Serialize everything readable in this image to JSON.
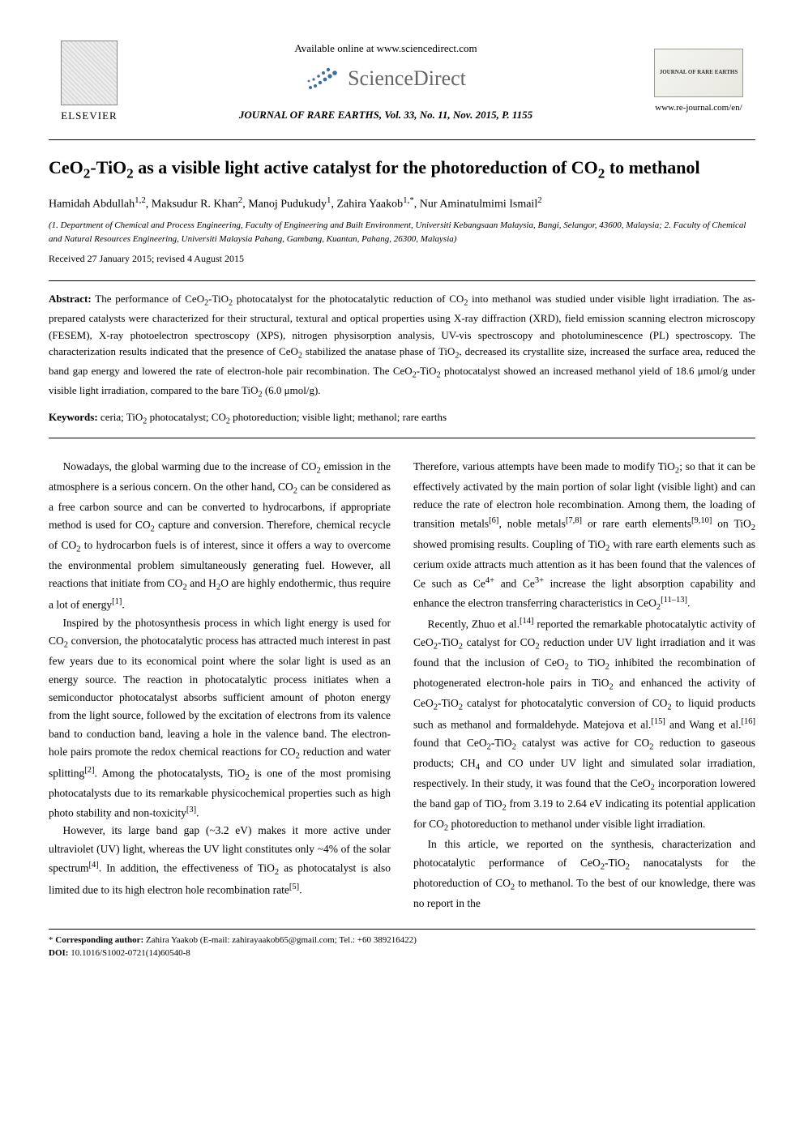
{
  "header": {
    "elsevier_label": "ELSEVIER",
    "available_text": "Available online at www.sciencedirect.com",
    "sciencedirect_label": "ScienceDirect",
    "journal_citation": "JOURNAL OF RARE EARTHS, Vol. 33, No. 11, Nov. 2015, P. 1155",
    "journal_cover_title": "JOURNAL OF RARE EARTHS",
    "journal_url": "www.re-journal.com/en/",
    "sd_dots_color": "#3a6ea5",
    "sd_text_color": "#666666"
  },
  "article": {
    "title_html": "CeO<sub>2</sub>-TiO<sub>2</sub> as a visible light active catalyst for the photoreduction of CO<sub>2</sub> to methanol",
    "authors_html": "Hamidah Abdullah<sup>1,2</sup>, Maksudur R. Khan<sup>2</sup>, Manoj Pudukudy<sup>1</sup>, Zahira Yaakob<sup>1,*</sup>, Nur Aminatulmimi Ismail<sup>2</sup>",
    "affiliations_html": "(1. Department of Chemical and Process Engineering, Faculty of Engineering and Built Environment, Universiti Kebangsaan Malaysia, Bangi, Selangor, 43600, Malaysia; 2. Faculty of Chemical and Natural Resources Engineering, Universiti Malaysia Pahang, Gambang, Kuantan, Pahang, 26300, Malaysia)",
    "received": "Received 27 January 2015; revised 4 August 2015"
  },
  "abstract": {
    "label": "Abstract:",
    "body_html": "The performance of CeO<sub>2</sub>-TiO<sub>2</sub> photocatalyst for the photocatalytic reduction of CO<sub>2</sub> into methanol was studied under visible light irradiation. The as-prepared catalysts were characterized for their structural, textural and optical properties using X-ray diffraction (XRD), field emission scanning electron microscopy (FESEM), X-ray photoelectron spectroscopy (XPS), nitrogen physisorption analysis, UV-vis spectroscopy and photoluminescence (PL) spectroscopy. The characterization results indicated that the presence of CeO<sub>2</sub> stabilized the anatase phase of TiO<sub>2</sub>, decreased its crystallite size, increased the surface area, reduced the band gap energy and lowered the rate of electron-hole pair recombination. The CeO<sub>2</sub>-TiO<sub>2</sub> photocatalyst showed an increased methanol yield of 18.6 μmol/g under visible light irradiation, compared to the bare TiO<sub>2</sub> (6.0 μmol/g).",
    "keywords_label": "Keywords:",
    "keywords_text_html": "ceria; TiO<sub>2</sub> photocatalyst; CO<sub>2</sub> photoreduction; visible light; methanol; rare earths"
  },
  "body": {
    "left_paragraphs_html": [
      "Nowadays, the global warming due to the increase of CO<sub>2</sub> emission in the atmosphere is a serious concern. On the other hand, CO<sub>2</sub> can be considered as a free carbon source and can be converted to hydrocarbons, if appropriate method is used for CO<sub>2</sub> capture and conversion. Therefore, chemical recycle of CO<sub>2</sub> to hydrocarbon fuels is of interest, since it offers a way to overcome the environmental problem simultaneously generating fuel. However, all reactions that initiate from CO<sub>2</sub> and H<sub>2</sub>O are highly endothermic, thus require a lot of energy<sup>[1]</sup>.",
      "Inspired by the photosynthesis process in which light energy is used for CO<sub>2</sub> conversion, the photocatalytic process has attracted much interest in past few years due to its economical point where the solar light is used as an energy source. The reaction in photocatalytic process initiates when a semiconductor photocatalyst absorbs sufficient amount of photon energy from the light source, followed by the excitation of electrons from its valence band to conduction band, leaving a hole in the valence band. The electron-hole pairs promote the redox chemical reactions for CO<sub>2</sub> reduction and water splitting<sup>[2]</sup>. Among the photocatalysts, TiO<sub>2</sub> is one of the most promising photocatalysts due to its remarkable physicochemical properties such as high photo stability and non-toxicity<sup>[3]</sup>.",
      "However, its large band gap (~3.2 eV) makes it more active under ultraviolet (UV) light, whereas the UV light constitutes only ~4% of the solar spectrum<sup>[4]</sup>. In addition, the effectiveness of TiO<sub>2</sub> as photocatalyst is also limited due to its high electron hole recombination rate<sup>[5]</sup>."
    ],
    "right_paragraphs_html": [
      "Therefore, various attempts have been made to modify TiO<sub>2</sub>; so that it can be effectively activated by the main portion of solar light (visible light) and can reduce the rate of electron hole recombination. Among them, the loading of transition metals<sup>[6]</sup>, noble metals<sup>[7,8]</sup> or rare earth elements<sup>[9,10]</sup> on TiO<sub>2</sub> showed promising results. Coupling of TiO<sub>2</sub> with rare earth elements such as cerium oxide attracts much attention as it has been found that the valences of Ce such as Ce<sup>4+</sup> and Ce<sup>3+</sup> increase the light absorption capability and enhance the electron transferring characteristics in CeO<sub>2</sub><sup>[11–13]</sup>.",
      "Recently, Zhuo et al.<sup>[14]</sup> reported the remarkable photocatalytic activity of CeO<sub>2</sub>-TiO<sub>2</sub> catalyst for CO<sub>2</sub> reduction under UV light irradiation and it was found that the inclusion of CeO<sub>2</sub> to TiO<sub>2</sub> inhibited the recombination of photogenerated electron-hole pairs in TiO<sub>2</sub> and enhanced the activity of CeO<sub>2</sub>-TiO<sub>2</sub> catalyst for photocatalytic conversion of CO<sub>2</sub> to liquid products such as methanol and formaldehyde. Matejova et al.<sup>[15]</sup> and Wang et al.<sup>[16]</sup> found that CeO<sub>2</sub>-TiO<sub>2</sub> catalyst was active for CO<sub>2</sub> reduction to gaseous products; CH<sub>4</sub> and CO under UV light and simulated solar irradiation, respectively. In their study, it was found that the CeO<sub>2</sub> incorporation lowered the band gap of TiO<sub>2</sub> from 3.19 to 2.64 eV indicating its potential application for CO<sub>2</sub> photoreduction to methanol under visible light irradiation.",
      "In this article, we reported on the synthesis, characterization and photocatalytic performance of CeO<sub>2</sub>-TiO<sub>2</sub> nanocatalysts for the photoreduction of CO<sub>2</sub> to methanol. To the best of our knowledge, there was no report in the"
    ]
  },
  "footer": {
    "corresponding_html": "* <b>Corresponding author:</b> Zahira Yaakob (E-mail: zahirayaakob65@gmail.com; Tel.: +60 389216422)",
    "doi_html": "<b>DOI:</b> 10.1016/S1002-0721(14)60540-8"
  },
  "colors": {
    "text": "#000000",
    "background": "#ffffff",
    "rule": "#000000"
  },
  "typography": {
    "title_fontsize_pt": 16,
    "body_fontsize_pt": 10,
    "abstract_fontsize_pt": 9.5,
    "font_family": "Times New Roman"
  }
}
